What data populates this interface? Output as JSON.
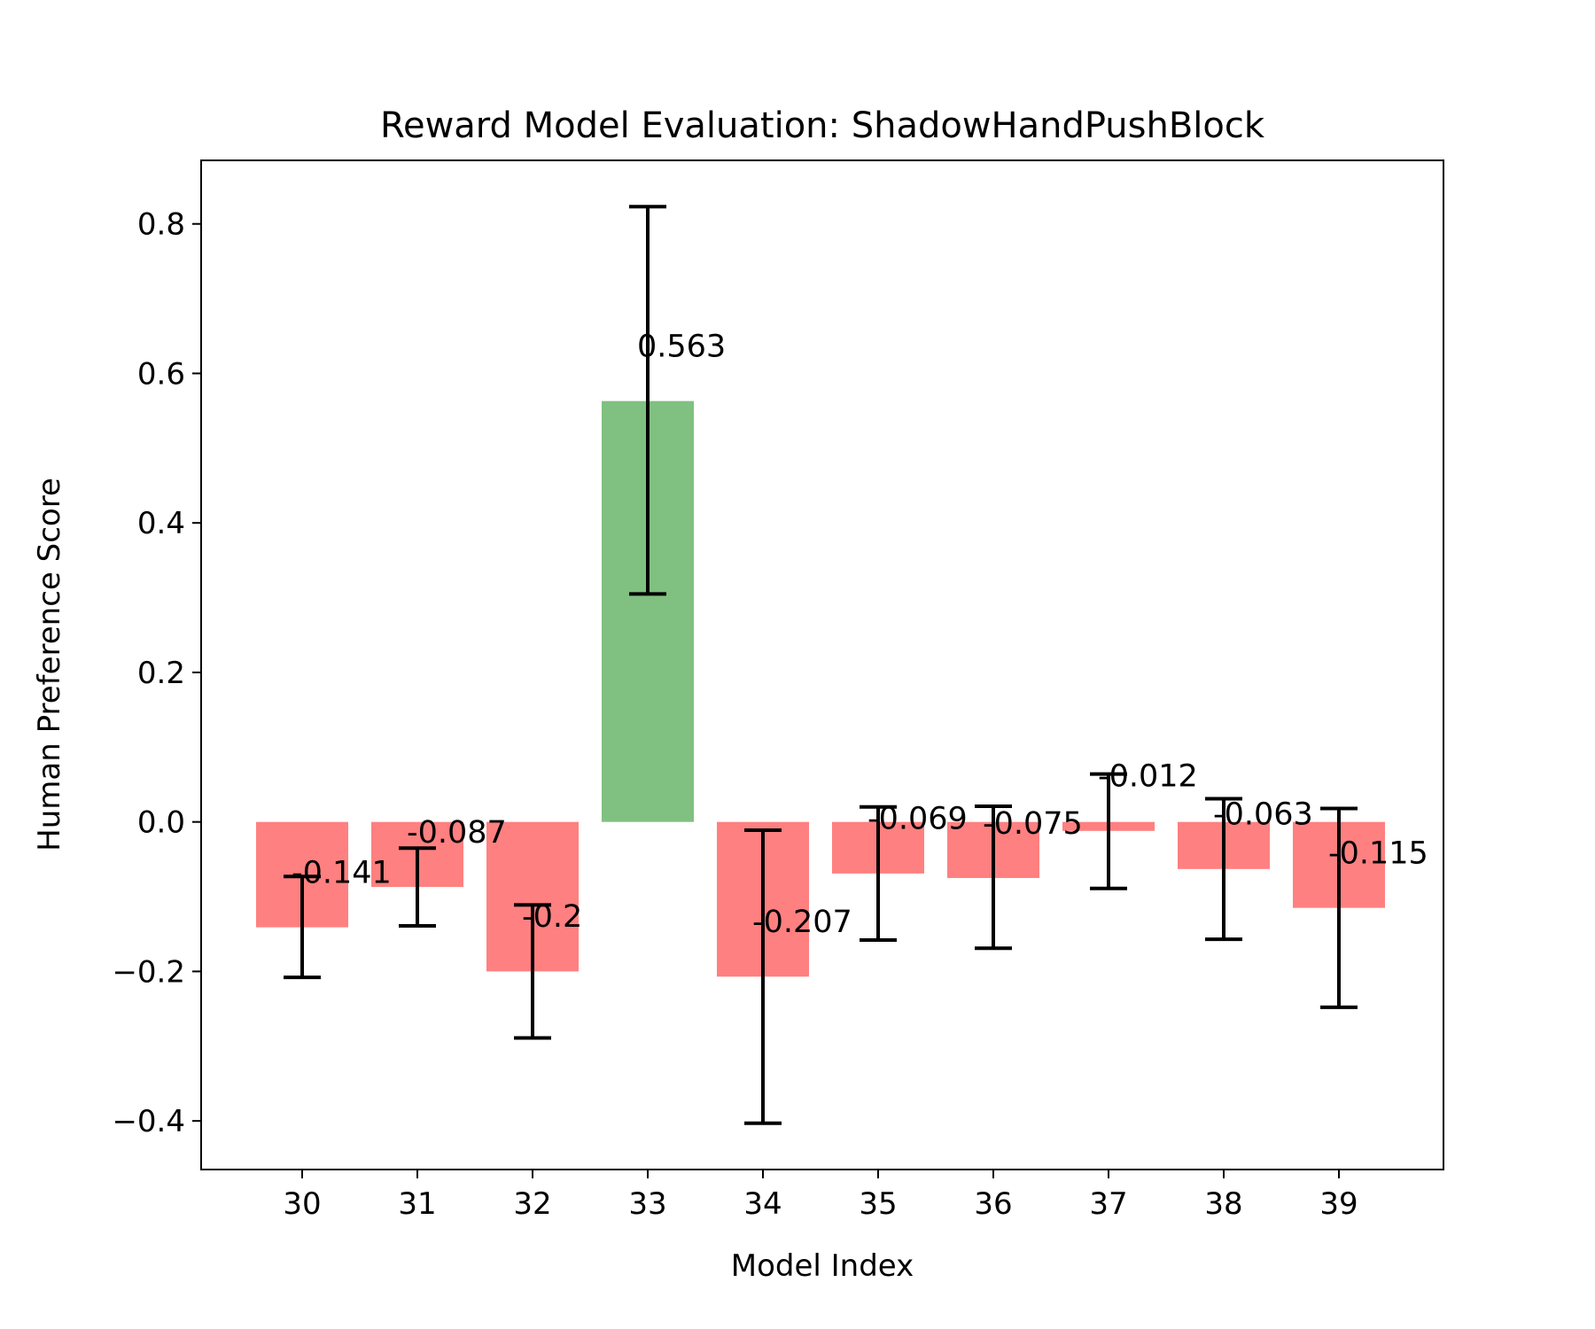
{
  "chart_data": {
    "type": "bar",
    "title": "Reward Model Evaluation: ShadowHandPushBlock",
    "xlabel": "Model Index",
    "ylabel": "Human Preference Score",
    "categories": [
      "30",
      "31",
      "32",
      "33",
      "34",
      "35",
      "36",
      "37",
      "38",
      "39"
    ],
    "values": [
      -0.141,
      -0.087,
      -0.2,
      0.563,
      -0.207,
      -0.069,
      -0.075,
      -0.012,
      -0.063,
      -0.115
    ],
    "value_labels": [
      "-0.141",
      "-0.087",
      "-0.2",
      "0.563",
      "-0.207",
      "-0.069",
      "-0.075",
      "-0.012",
      "-0.063",
      "-0.115"
    ],
    "error_low": [
      -0.208,
      -0.139,
      -0.289,
      0.305,
      -0.403,
      -0.158,
      -0.169,
      -0.089,
      -0.157,
      -0.248
    ],
    "error_high": [
      -0.073,
      -0.035,
      -0.111,
      0.823,
      -0.011,
      0.02,
      0.021,
      0.064,
      0.031,
      0.018
    ],
    "ylim": [
      -0.465,
      0.885
    ],
    "yticks": [
      -0.4,
      -0.2,
      0.0,
      0.2,
      0.4,
      0.6,
      0.8
    ],
    "ytick_labels": [
      "−0.4",
      "−0.2",
      "0.0",
      "0.2",
      "0.4",
      "0.6",
      "0.8"
    ],
    "grid": false,
    "legend": "none",
    "colors": {
      "positive": "#80c080",
      "negative": "#ff8080",
      "error_bar": "#000000"
    }
  }
}
